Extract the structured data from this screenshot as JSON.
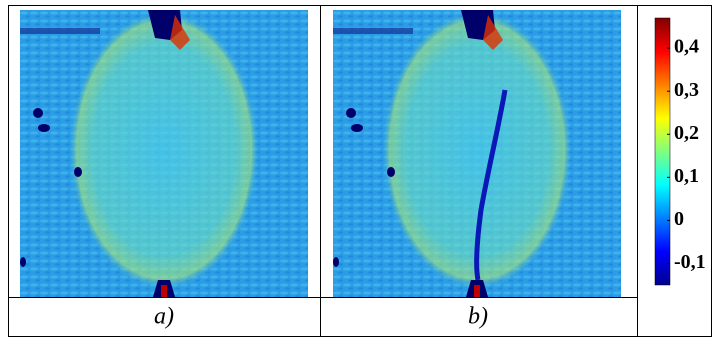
{
  "panels": [
    {
      "label": "a)"
    },
    {
      "label": "b)"
    }
  ],
  "colorbar": {
    "lim": [
      -0.15,
      0.47
    ],
    "ticks": [
      {
        "value": 0.4,
        "label": "0,4"
      },
      {
        "value": 0.3,
        "label": "0,3"
      },
      {
        "value": 0.2,
        "label": "0,2"
      },
      {
        "value": 0.1,
        "label": "0,1"
      },
      0,
      {
        "value": -0.1,
        "label": "-0,1"
      }
    ]
  }
}
